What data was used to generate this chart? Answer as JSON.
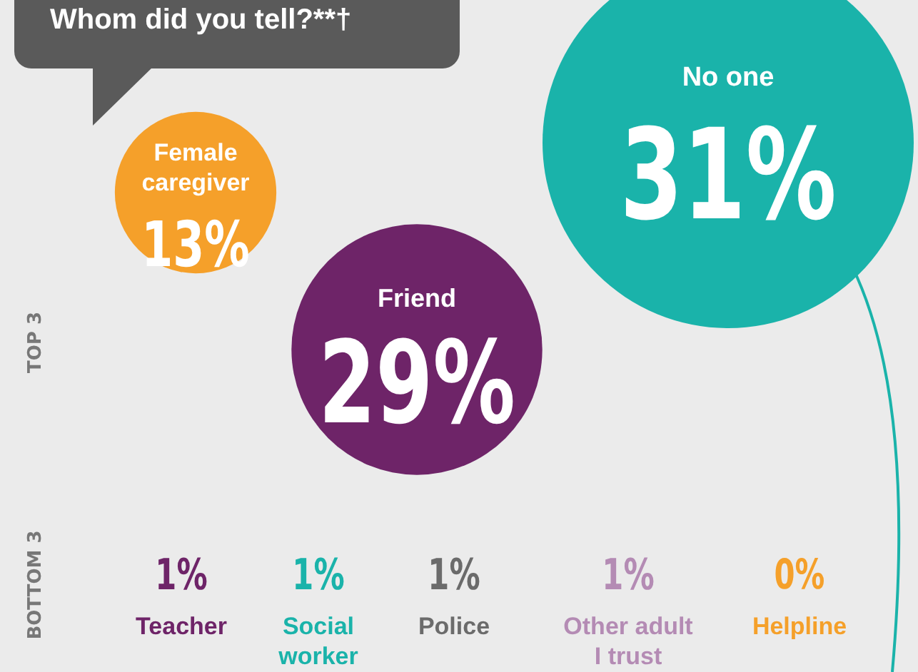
{
  "chart_data": {
    "type": "other",
    "title": "Whom did you tell?**†",
    "categories": [
      "No one",
      "Friend",
      "Female caregiver",
      "Teacher",
      "Social worker",
      "Police",
      "Other adult I trust",
      "Helpline"
    ],
    "values": [
      31,
      29,
      13,
      1,
      1,
      1,
      1,
      0
    ],
    "value_labels": [
      "31%",
      "29%",
      "13%",
      "1%",
      "1%",
      "1%",
      "1%",
      "0%"
    ],
    "colors": [
      "#1ab3aa",
      "#6e2468",
      "#f5a02a",
      "#6e2468",
      "#1ab3aa",
      "#6b6b6b",
      "#b48bb4",
      "#f5a02a"
    ],
    "annotations": [
      "TOP 3",
      "BOTTOM 3"
    ]
  }
}
